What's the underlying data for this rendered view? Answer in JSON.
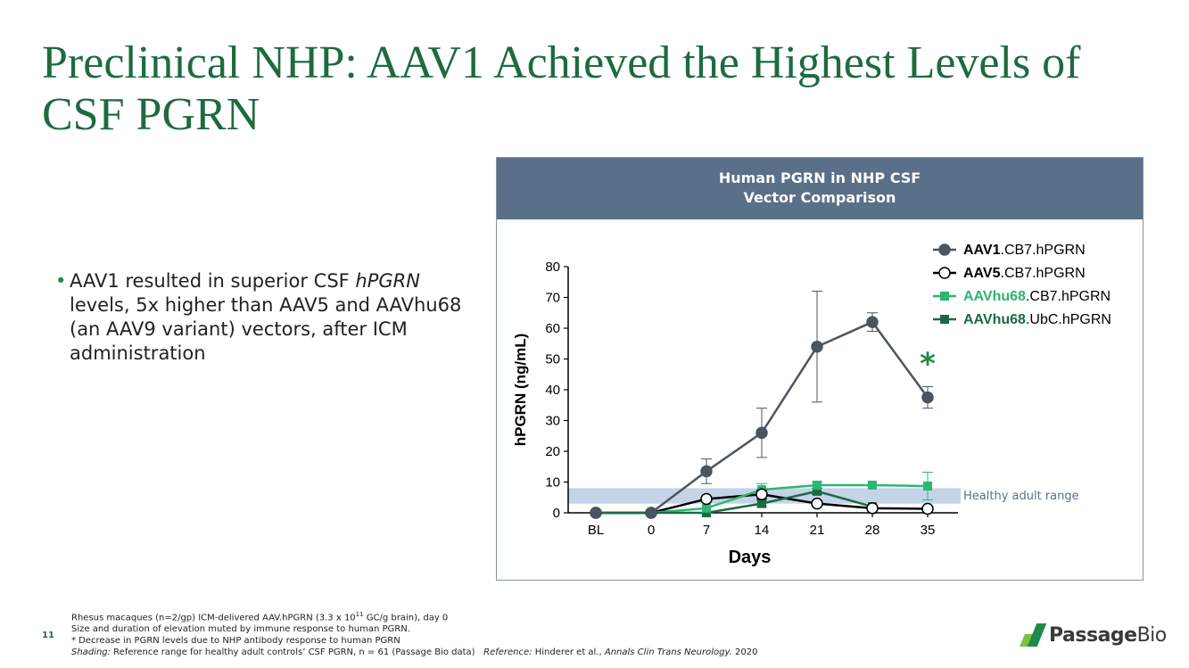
{
  "slide": {
    "title": "Preclinical NHP: AAV1 Achieved the Highest Levels of CSF PGRN",
    "bullet": {
      "pre": "AAV1 resulted in superior CSF ",
      "italic": "hPGRN",
      "post": " levels, 5x higher than AAV5 and AAVhu68 (an AAV9 variant) vectors, after ICM administration"
    },
    "page_number": "11"
  },
  "footnotes": {
    "line1_pre": "Rhesus macaques (n=2/gp) ICM-delivered AAV.hPGRN (3.3 x 10",
    "line1_sup": "11",
    "line1_post": " GC/g brain), day 0",
    "line2": "Size and duration of elevation muted by immune response to human PGRN.",
    "line3": "* Decrease in PGRN levels due to NHP antibody response to human PGRN",
    "line4_label": "Shading:",
    "line4_text": " Reference range for healthy adult controls’ CSF PGRN, n = 61 (Passage Bio data)   ",
    "line4_ref_label": "Reference:",
    "line4_ref_text": " Hinderer et al., ",
    "line4_journal": "Annals Clin Trans Neurology.",
    "line4_year": " 2020"
  },
  "logo": {
    "bold": "Passage",
    "light": "Bio",
    "colors": [
      "#7ac143",
      "#1f8a4c"
    ]
  },
  "chart_header": {
    "line1": "Human PGRN in NHP CSF",
    "line2": "Vector Comparison"
  },
  "chart_data": {
    "type": "line",
    "categories": [
      "BL",
      "0",
      "7",
      "14",
      "21",
      "28",
      "35"
    ],
    "xlabel": "Days",
    "ylabel": "hPGRN (ng/mL)",
    "ylim": [
      0,
      80
    ],
    "yticks": [
      0,
      10,
      20,
      30,
      40,
      50,
      60,
      70,
      80
    ],
    "shading": {
      "range": [
        3,
        8
      ],
      "label": "Healthy adult range",
      "color": "#c5d3e6"
    },
    "annotation": {
      "text": "*",
      "x": "35",
      "color": "#1f8a4c"
    },
    "series": [
      {
        "name_bold": "AAV1",
        "name_rest": ".CB7.hPGRN",
        "color": "#4a5560",
        "marker": "circle",
        "fill": "#4a5560",
        "values": [
          0,
          0,
          13.5,
          26,
          54,
          62,
          37.5
        ],
        "err": [
          0,
          0,
          4,
          8,
          18,
          3,
          3.5
        ]
      },
      {
        "name_bold": "AAV5",
        "name_rest": ".CB7.hPGRN",
        "color": "#000000",
        "marker": "circle",
        "fill": "#ffffff",
        "values": [
          0,
          0,
          4.5,
          6,
          3,
          1.5,
          1.3
        ],
        "err": [
          0,
          0,
          0.5,
          1.5,
          0.5,
          0.3,
          0.3
        ]
      },
      {
        "name_bold": "AAVhu68",
        "name_rest": ".CB7.hPGRN",
        "color": "#2bb673",
        "marker": "square",
        "fill": "#2bb673",
        "values": [
          0,
          0,
          1.5,
          7.5,
          9,
          9,
          8.7
        ],
        "err": [
          0,
          0,
          0.5,
          2,
          1,
          0.5,
          4.5
        ]
      },
      {
        "name_bold": "AAVhu68",
        "name_rest": ".UbC.hPGRN",
        "color": "#1a6b43",
        "marker": "square",
        "fill": "#1a6b43",
        "values": [
          0,
          0,
          0,
          3,
          7,
          2,
          null
        ],
        "err": [
          0,
          0,
          0,
          1,
          1,
          0.5,
          0
        ]
      }
    ]
  }
}
